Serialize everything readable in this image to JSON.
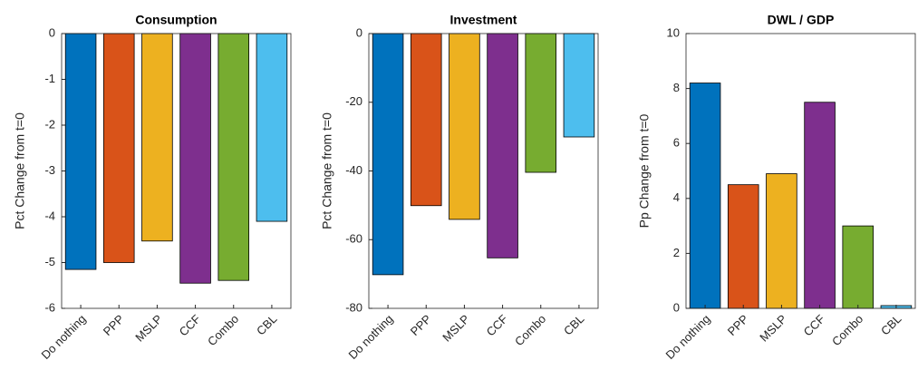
{
  "chart_data": [
    {
      "type": "bar",
      "title": "Consumption",
      "ylabel": "Pct Change from t=0",
      "categories": [
        "Do nothing",
        "PPP",
        "MSLP",
        "CCF",
        "Combo",
        "CBL"
      ],
      "values": [
        -5.15,
        -5.0,
        -4.53,
        -5.45,
        -5.39,
        -4.1
      ],
      "colors": [
        "#0072BD",
        "#D95319",
        "#EDB120",
        "#7E2F8E",
        "#77AC30",
        "#4DBEEE"
      ],
      "ylim": [
        -6,
        0
      ],
      "yticks": [
        -6,
        -5,
        -4,
        -3,
        -2,
        -1,
        0
      ]
    },
    {
      "type": "bar",
      "title": "Investment",
      "ylabel": "Pct Change from t=0",
      "categories": [
        "Do nothing",
        "PPP",
        "MSLP",
        "CCF",
        "Combo",
        "CBL"
      ],
      "values": [
        -70.2,
        -50.1,
        -54.1,
        -65.3,
        -40.4,
        -30.1
      ],
      "colors": [
        "#0072BD",
        "#D95319",
        "#EDB120",
        "#7E2F8E",
        "#77AC30",
        "#4DBEEE"
      ],
      "ylim": [
        -80,
        0
      ],
      "yticks": [
        -80,
        -60,
        -40,
        -20,
        0
      ]
    },
    {
      "type": "bar",
      "title": "DWL / GDP",
      "ylabel": "Pp Change from t=0",
      "categories": [
        "Do nothing",
        "PPP",
        "MSLP",
        "CCF",
        "Combo",
        "CBL"
      ],
      "values": [
        8.2,
        4.5,
        4.9,
        7.5,
        3.0,
        0.1
      ],
      "colors": [
        "#0072BD",
        "#D95319",
        "#EDB120",
        "#7E2F8E",
        "#77AC30",
        "#4DBEEE"
      ],
      "ylim": [
        0,
        10
      ],
      "yticks": [
        0,
        2,
        4,
        6,
        8,
        10
      ]
    }
  ]
}
